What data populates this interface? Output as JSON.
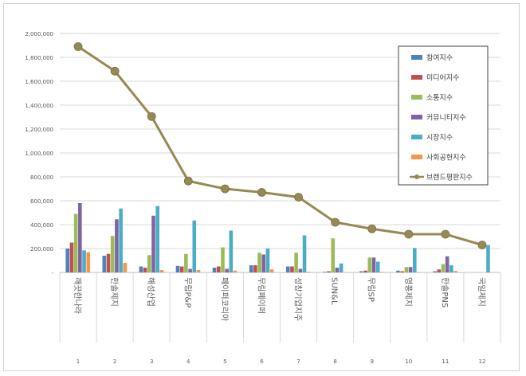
{
  "chart_data": {
    "type": "bar",
    "title": "",
    "xlabel": "",
    "ylabel": "",
    "ylim": [
      0,
      2000000
    ],
    "yticks": [
      "-",
      "200,000",
      "400,000",
      "600,000",
      "800,000",
      "1,000,000",
      "1,200,000",
      "1,400,000",
      "1,600,000",
      "1,800,000",
      "2,000,000"
    ],
    "grid": true,
    "legend_position": "top-right",
    "categories": [
      "깨끗한나라",
      "한솔제지",
      "해성산업",
      "무림P&P",
      "페이퍼코리아",
      "무림페이퍼",
      "성창기업지주",
      "SUN&L",
      "무림SP",
      "영풍제지",
      "한솔PNS",
      "국일제지"
    ],
    "ranks": [
      "1",
      "2",
      "3",
      "4",
      "5",
      "6",
      "7",
      "8",
      "9",
      "10",
      "11",
      "12"
    ],
    "series": [
      {
        "name": "참여지수",
        "kind": "bar",
        "color": "#4f81bd",
        "values": [
          200000,
          140000,
          50000,
          55000,
          40000,
          60000,
          50000,
          5000,
          10000,
          15000,
          10000,
          0
        ]
      },
      {
        "name": "미디어지수",
        "kind": "bar",
        "color": "#c0504d",
        "values": [
          250000,
          155000,
          40000,
          50000,
          50000,
          60000,
          50000,
          10000,
          15000,
          10000,
          25000,
          0
        ]
      },
      {
        "name": "소통지수",
        "kind": "bar",
        "color": "#9bbb59",
        "values": [
          490000,
          305000,
          145000,
          155000,
          210000,
          165000,
          165000,
          285000,
          125000,
          45000,
          70000,
          0
        ]
      },
      {
        "name": "커뮤니티지수",
        "kind": "bar",
        "color": "#8064a2",
        "values": [
          580000,
          445000,
          475000,
          30000,
          30000,
          150000,
          30000,
          40000,
          125000,
          45000,
          135000,
          0
        ]
      },
      {
        "name": "시장지수",
        "kind": "bar",
        "color": "#4bacc6",
        "values": [
          185000,
          535000,
          555000,
          435000,
          350000,
          200000,
          310000,
          75000,
          90000,
          205000,
          60000,
          230000
        ]
      },
      {
        "name": "사회공헌지수",
        "kind": "bar",
        "color": "#f79646",
        "values": [
          170000,
          80000,
          20000,
          20000,
          15000,
          25000,
          5000,
          2000,
          5000,
          3000,
          12000,
          0
        ]
      },
      {
        "name": "브랜드평판지수",
        "kind": "line",
        "color": "#948a54",
        "values": [
          1890000,
          1685000,
          1305000,
          765000,
          700000,
          670000,
          630000,
          420000,
          365000,
          320000,
          320000,
          230000
        ]
      }
    ]
  }
}
